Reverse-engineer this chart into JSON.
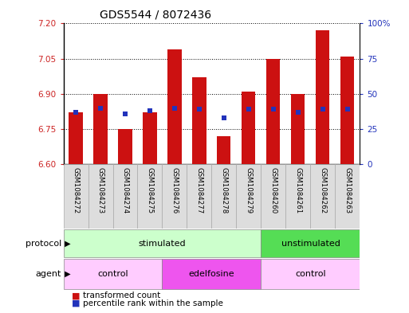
{
  "title": "GDS5544 / 8072436",
  "samples": [
    "GSM1084272",
    "GSM1084273",
    "GSM1084274",
    "GSM1084275",
    "GSM1084276",
    "GSM1084277",
    "GSM1084278",
    "GSM1084279",
    "GSM1084260",
    "GSM1084261",
    "GSM1084262",
    "GSM1084263"
  ],
  "bar_values": [
    6.82,
    6.9,
    6.75,
    6.82,
    7.09,
    6.97,
    6.72,
    6.91,
    7.05,
    6.9,
    7.17,
    7.06
  ],
  "bar_base": 6.6,
  "blue_values_pct": [
    37,
    40,
    36,
    38,
    40,
    39,
    33,
    39,
    39,
    37,
    39,
    39
  ],
  "ylim_left": [
    6.6,
    7.2
  ],
  "yticks_left": [
    6.6,
    6.75,
    6.9,
    7.05,
    7.2
  ],
  "ylim_right": [
    0,
    100
  ],
  "yticks_right": [
    0,
    25,
    50,
    75,
    100
  ],
  "ytick_labels_right": [
    "0",
    "25",
    "50",
    "75",
    "100%"
  ],
  "bar_color": "#cc1111",
  "blue_color": "#2233bb",
  "protocol_groups": [
    {
      "label": "stimulated",
      "start": 0,
      "end": 8,
      "color": "#ccffcc"
    },
    {
      "label": "unstimulated",
      "start": 8,
      "end": 12,
      "color": "#55dd55"
    }
  ],
  "agent_groups": [
    {
      "label": "control",
      "start": 0,
      "end": 4,
      "color": "#ffccff"
    },
    {
      "label": "edelfosine",
      "start": 4,
      "end": 8,
      "color": "#ee55ee"
    },
    {
      "label": "control",
      "start": 8,
      "end": 12,
      "color": "#ffccff"
    }
  ],
  "legend_red_label": "transformed count",
  "legend_blue_label": "percentile rank within the sample",
  "protocol_label": "protocol",
  "agent_label": "agent",
  "title_fontsize": 10,
  "axis_label_color_left": "#cc2222",
  "axis_label_color_right": "#2233bb",
  "bar_width": 0.55,
  "sample_name_bg": "#dddddd",
  "fig_bg": "#ffffff"
}
